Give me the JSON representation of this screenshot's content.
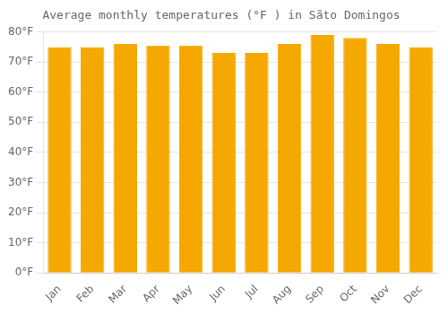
{
  "chart_data": {
    "type": "bar",
    "title": "Average monthly temperatures (°F ) in Sãto Domingos",
    "categories": [
      "Jan",
      "Feb",
      "Mar",
      "Apr",
      "May",
      "Jun",
      "Jul",
      "Aug",
      "Sep",
      "Oct",
      "Nov",
      "Dec"
    ],
    "values": [
      75,
      75,
      76,
      75.5,
      75.5,
      73,
      73,
      76,
      79,
      78,
      76,
      75
    ],
    "color": "#F5A800",
    "ylim": [
      0,
      80
    ],
    "yticks": [
      {
        "value": 0,
        "label": "0°F"
      },
      {
        "value": 10,
        "label": "10°F"
      },
      {
        "value": 20,
        "label": "20°F"
      },
      {
        "value": 30,
        "label": "30°F"
      },
      {
        "value": 40,
        "label": "40°F"
      },
      {
        "value": 50,
        "label": "50°F"
      },
      {
        "value": 60,
        "label": "60°F"
      },
      {
        "value": 70,
        "label": "70°F"
      },
      {
        "value": 80,
        "label": "80°F"
      }
    ],
    "grid": true
  }
}
